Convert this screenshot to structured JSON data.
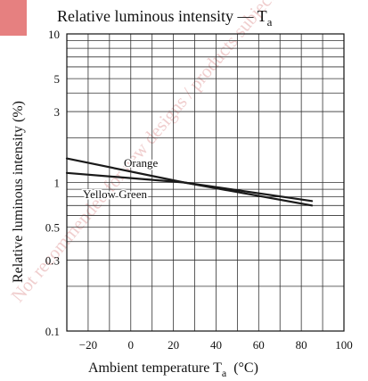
{
  "watermark": {
    "text": "Not recommended for new designs / products subject to change by stage",
    "color": "#e3a6a6"
  },
  "chart_data": {
    "type": "line",
    "title_main": "Relative luminous intensity — T",
    "title_sub": "a",
    "xlabel_main": "Ambient temperature  T",
    "xlabel_sub": "a",
    "xlabel_unit": "(°C)",
    "ylabel": "Relative luminous intensity  (%)",
    "x_scale": "linear",
    "y_scale": "log",
    "xlim": [
      -30,
      100
    ],
    "ylim": [
      0.1,
      10
    ],
    "x_ticks": [
      -20,
      0,
      20,
      40,
      60,
      80,
      100
    ],
    "x_tick_labels": [
      "−20",
      "0",
      "20",
      "40",
      "60",
      "80",
      "100"
    ],
    "y_ticks": [
      0.1,
      0.3,
      0.5,
      1,
      3,
      5,
      10
    ],
    "y_tick_labels": [
      "0.1",
      "0.3",
      "0.5",
      "1",
      "3",
      "5",
      "10"
    ],
    "x_gridlines": [
      -20,
      -10,
      0,
      10,
      20,
      30,
      40,
      50,
      60,
      70,
      80,
      90
    ],
    "y_gridlines": [
      0.2,
      0.3,
      0.4,
      0.5,
      0.6,
      0.7,
      0.8,
      0.9,
      1,
      2,
      3,
      4,
      5,
      6,
      7,
      8,
      9
    ],
    "grid": true,
    "line_color": "#1a1a1a",
    "series": [
      {
        "name": "Orange",
        "x": [
          -30,
          25,
          85
        ],
        "y": [
          1.45,
          1.0,
          0.7
        ]
      },
      {
        "name": "Yellow Green",
        "x": [
          -30,
          25,
          85
        ],
        "y": [
          1.16,
          1.0,
          0.75
        ]
      }
    ]
  }
}
